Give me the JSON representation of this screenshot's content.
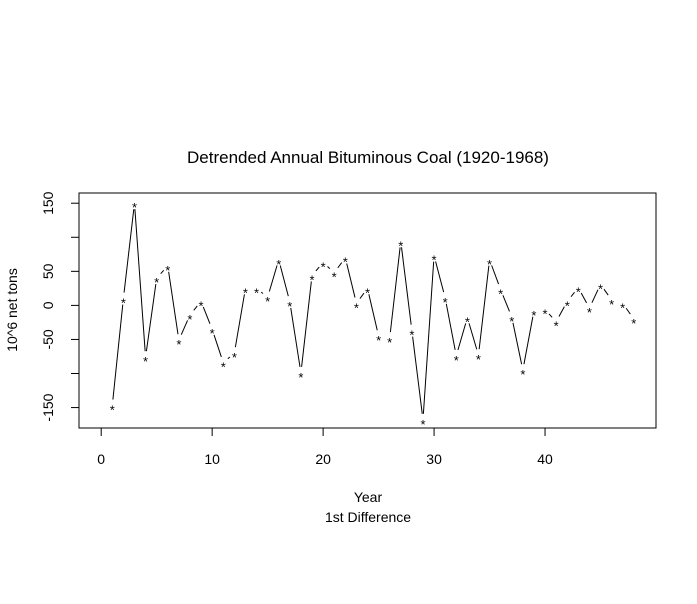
{
  "chart_data": {
    "type": "line",
    "title": "Detrended Annual Bituminous Coal (1920-1968)",
    "xlabel": "Year",
    "xlabel_sub": "1st Difference",
    "ylabel": "10^6 net tons",
    "xlim": [
      -2,
      50
    ],
    "ylim": [
      -180,
      165
    ],
    "xticks": [
      0,
      10,
      20,
      30,
      40
    ],
    "yticks": [
      150,
      100,
      50,
      0,
      -50,
      -100,
      -150
    ],
    "ytick_labels": [
      "150",
      "",
      "50",
      "0",
      "-50",
      "",
      "-150"
    ],
    "marker": "*",
    "series": [
      {
        "x": [
          1,
          2,
          3,
          4,
          5,
          6,
          7,
          8,
          9,
          10,
          11,
          12,
          13,
          14,
          15,
          16,
          17,
          18,
          19,
          20,
          21,
          22,
          23,
          24,
          25,
          26,
          27,
          28,
          29,
          30,
          31,
          32,
          33,
          34,
          35,
          36,
          37,
          38,
          39,
          40,
          41,
          42,
          43,
          44,
          45,
          46,
          47,
          48
        ],
        "values": [
          -147,
          10,
          150,
          -76,
          40,
          58,
          -51,
          -14,
          6,
          -35,
          -84,
          -70,
          25,
          25,
          12,
          67,
          5,
          -99,
          44,
          63,
          48,
          70,
          3,
          25,
          -45,
          -48,
          94,
          -37,
          -168,
          73,
          11,
          -74,
          -18,
          -73,
          67,
          23,
          -17,
          -95,
          -8,
          -6,
          -24,
          6,
          26,
          -4,
          31,
          8,
          3,
          -20
        ]
      }
    ]
  }
}
